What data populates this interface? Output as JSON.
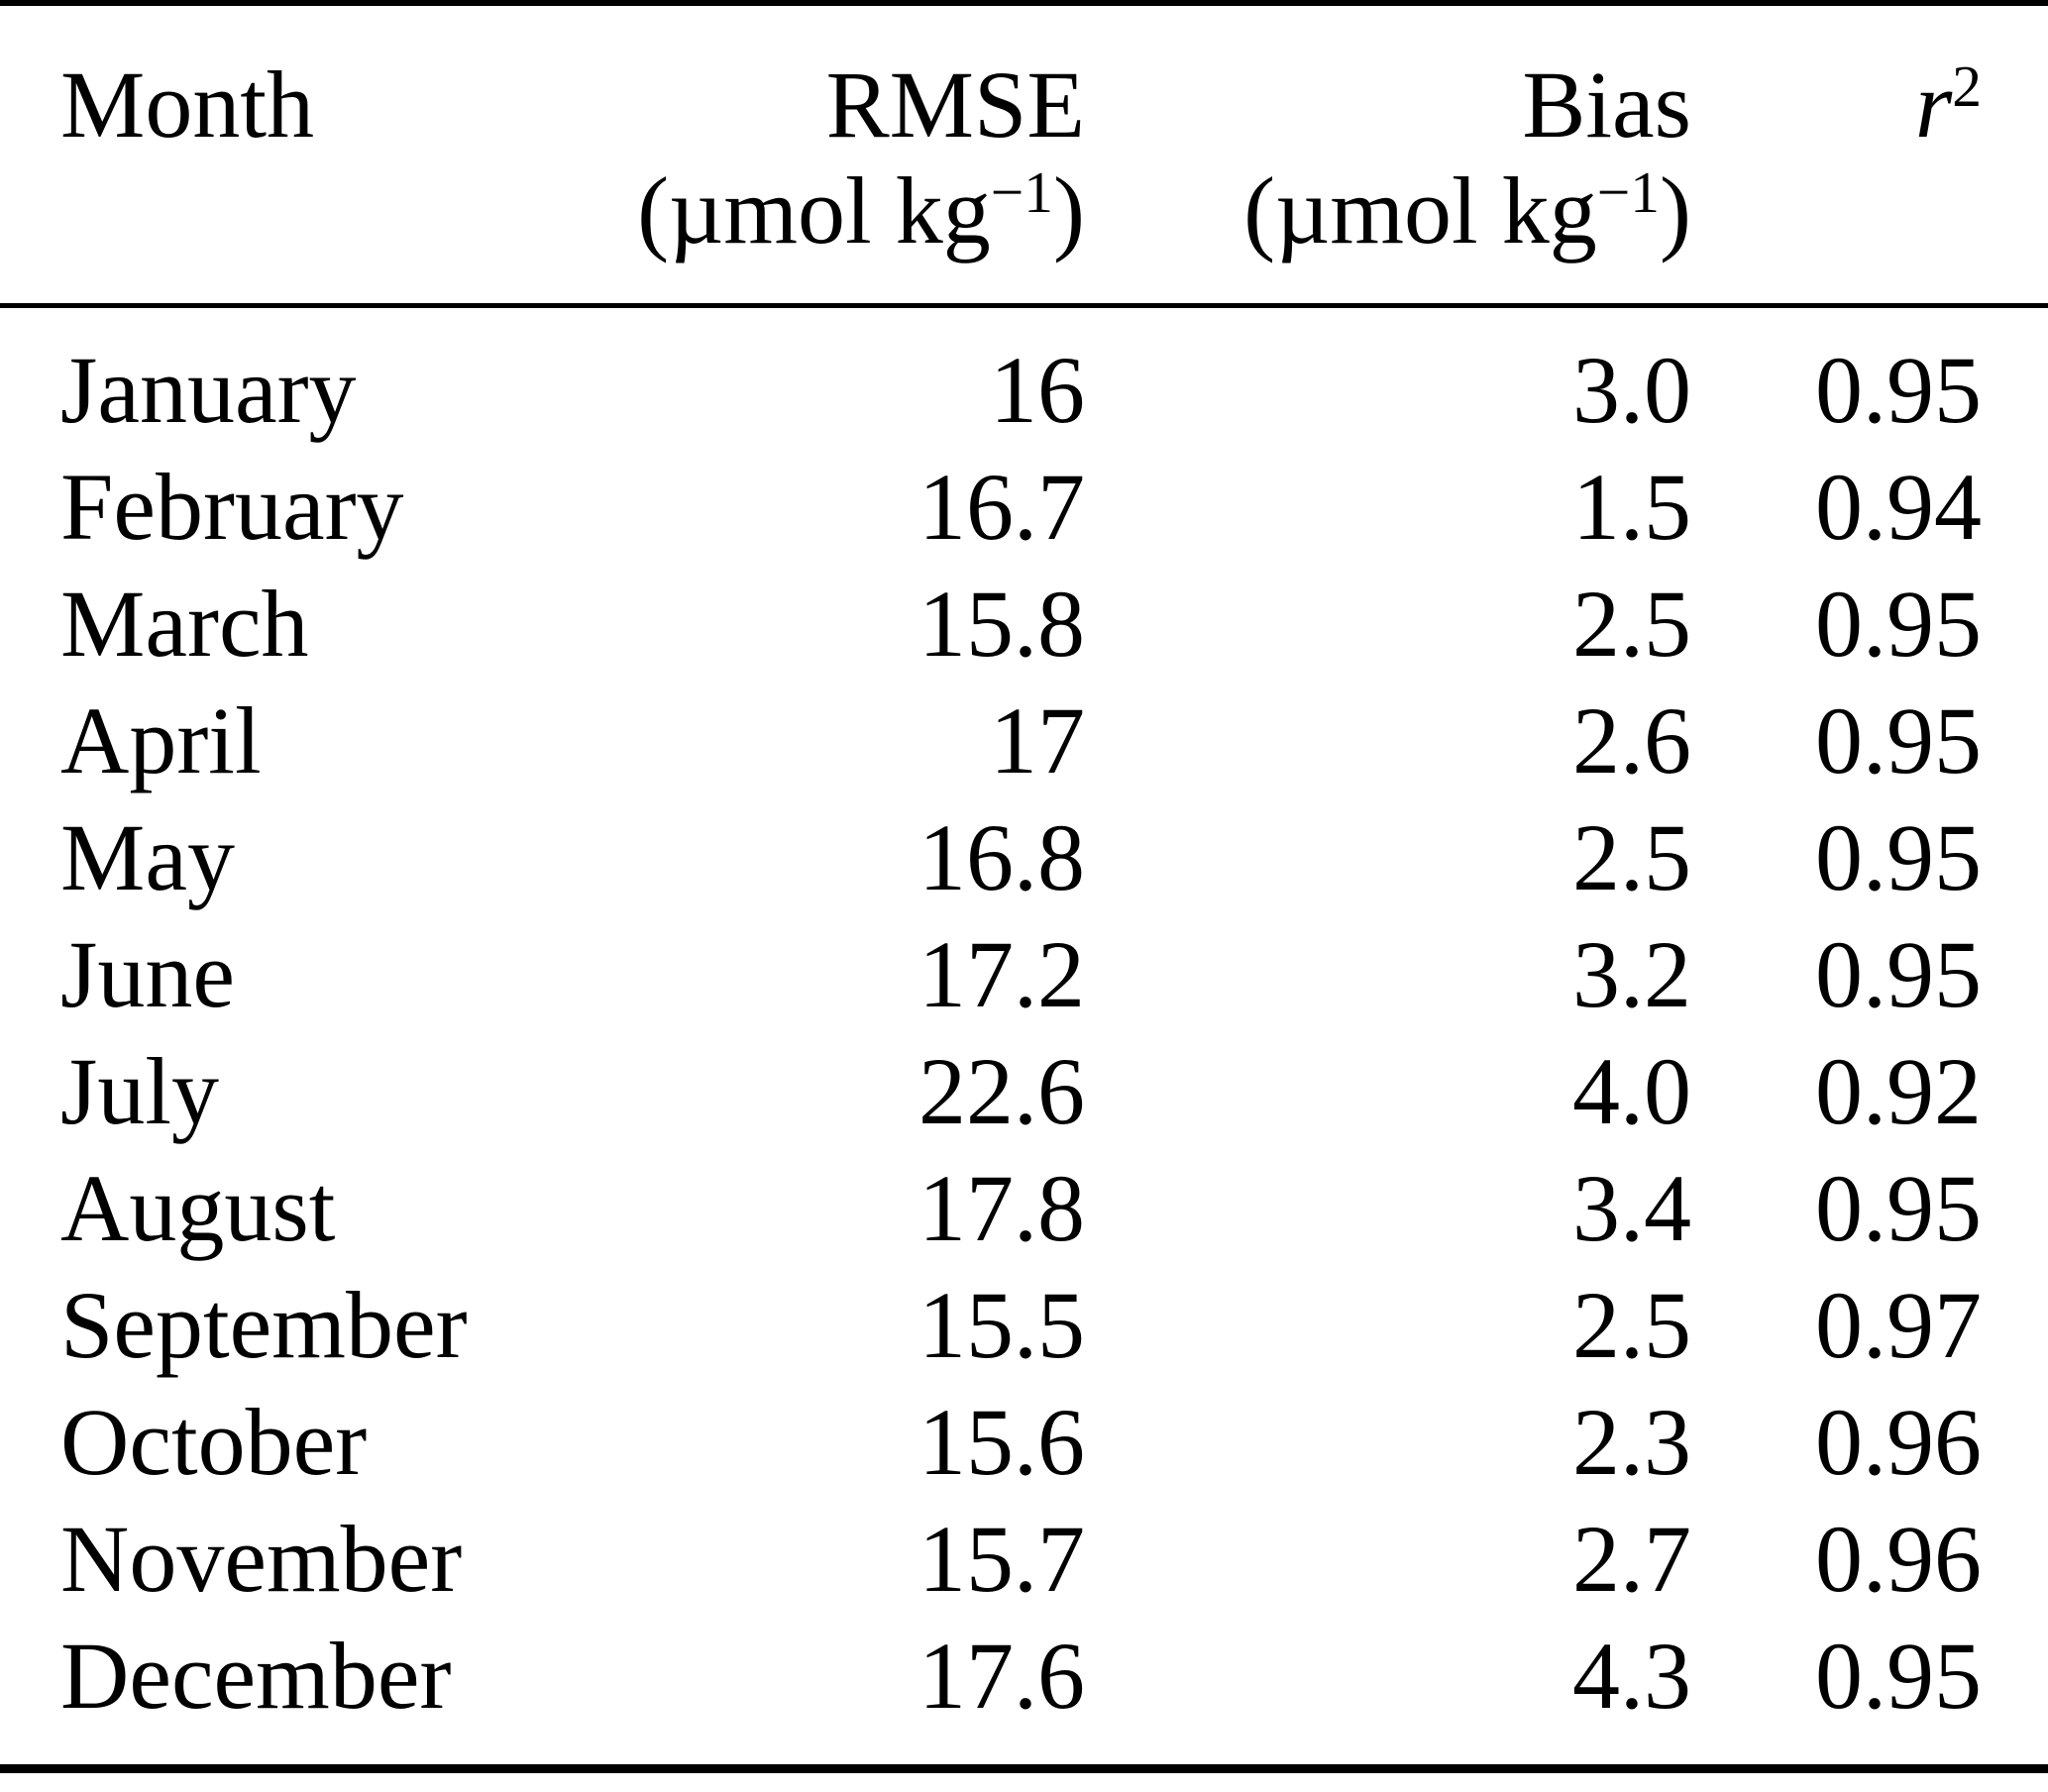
{
  "table": {
    "header": {
      "month": {
        "label": "Month"
      },
      "rmse": {
        "label": "RMSE",
        "unit_prefix": "(µmol kg",
        "unit_sup": "−1",
        "unit_suffix": ")"
      },
      "bias": {
        "label": "Bias",
        "unit_prefix": "(µmol kg",
        "unit_sup": "−1",
        "unit_suffix": ")"
      },
      "r2": {
        "label_base": "r",
        "label_sup": "2"
      }
    },
    "rows": [
      {
        "month": "January",
        "rmse": "16",
        "bias": "3.0",
        "r2": "0.95"
      },
      {
        "month": "February",
        "rmse": "16.7",
        "bias": "1.5",
        "r2": "0.94"
      },
      {
        "month": "March",
        "rmse": "15.8",
        "bias": "2.5",
        "r2": "0.95"
      },
      {
        "month": "April",
        "rmse": "17",
        "bias": "2.6",
        "r2": "0.95"
      },
      {
        "month": "May",
        "rmse": "16.8",
        "bias": "2.5",
        "r2": "0.95"
      },
      {
        "month": "June",
        "rmse": "17.2",
        "bias": "3.2",
        "r2": "0.95"
      },
      {
        "month": "July",
        "rmse": "22.6",
        "bias": "4.0",
        "r2": "0.92"
      },
      {
        "month": "August",
        "rmse": "17.8",
        "bias": "3.4",
        "r2": "0.95"
      },
      {
        "month": "September",
        "rmse": "15.5",
        "bias": "2.5",
        "r2": "0.97"
      },
      {
        "month": "October",
        "rmse": "15.6",
        "bias": "2.3",
        "r2": "0.96"
      },
      {
        "month": "November",
        "rmse": "15.7",
        "bias": "2.7",
        "r2": "0.96"
      },
      {
        "month": "December",
        "rmse": "17.6",
        "bias": "4.3",
        "r2": "0.95"
      }
    ]
  },
  "chart_data": {
    "type": "table",
    "categories": [
      "January",
      "February",
      "March",
      "April",
      "May",
      "June",
      "July",
      "August",
      "September",
      "October",
      "November",
      "December"
    ],
    "series": [
      {
        "name": "RMSE (µmol kg−1)",
        "values": [
          16,
          16.7,
          15.8,
          17,
          16.8,
          17.2,
          22.6,
          17.8,
          15.5,
          15.6,
          15.7,
          17.6
        ]
      },
      {
        "name": "Bias (µmol kg−1)",
        "values": [
          3.0,
          1.5,
          2.5,
          2.6,
          2.5,
          3.2,
          4.0,
          3.4,
          2.5,
          2.3,
          2.7,
          4.3
        ]
      },
      {
        "name": "r2",
        "values": [
          0.95,
          0.94,
          0.95,
          0.95,
          0.95,
          0.95,
          0.92,
          0.95,
          0.97,
          0.96,
          0.96,
          0.95
        ]
      }
    ],
    "colors": {
      "text": "#000000",
      "rules": "#000000",
      "background": "#ffffff"
    }
  }
}
